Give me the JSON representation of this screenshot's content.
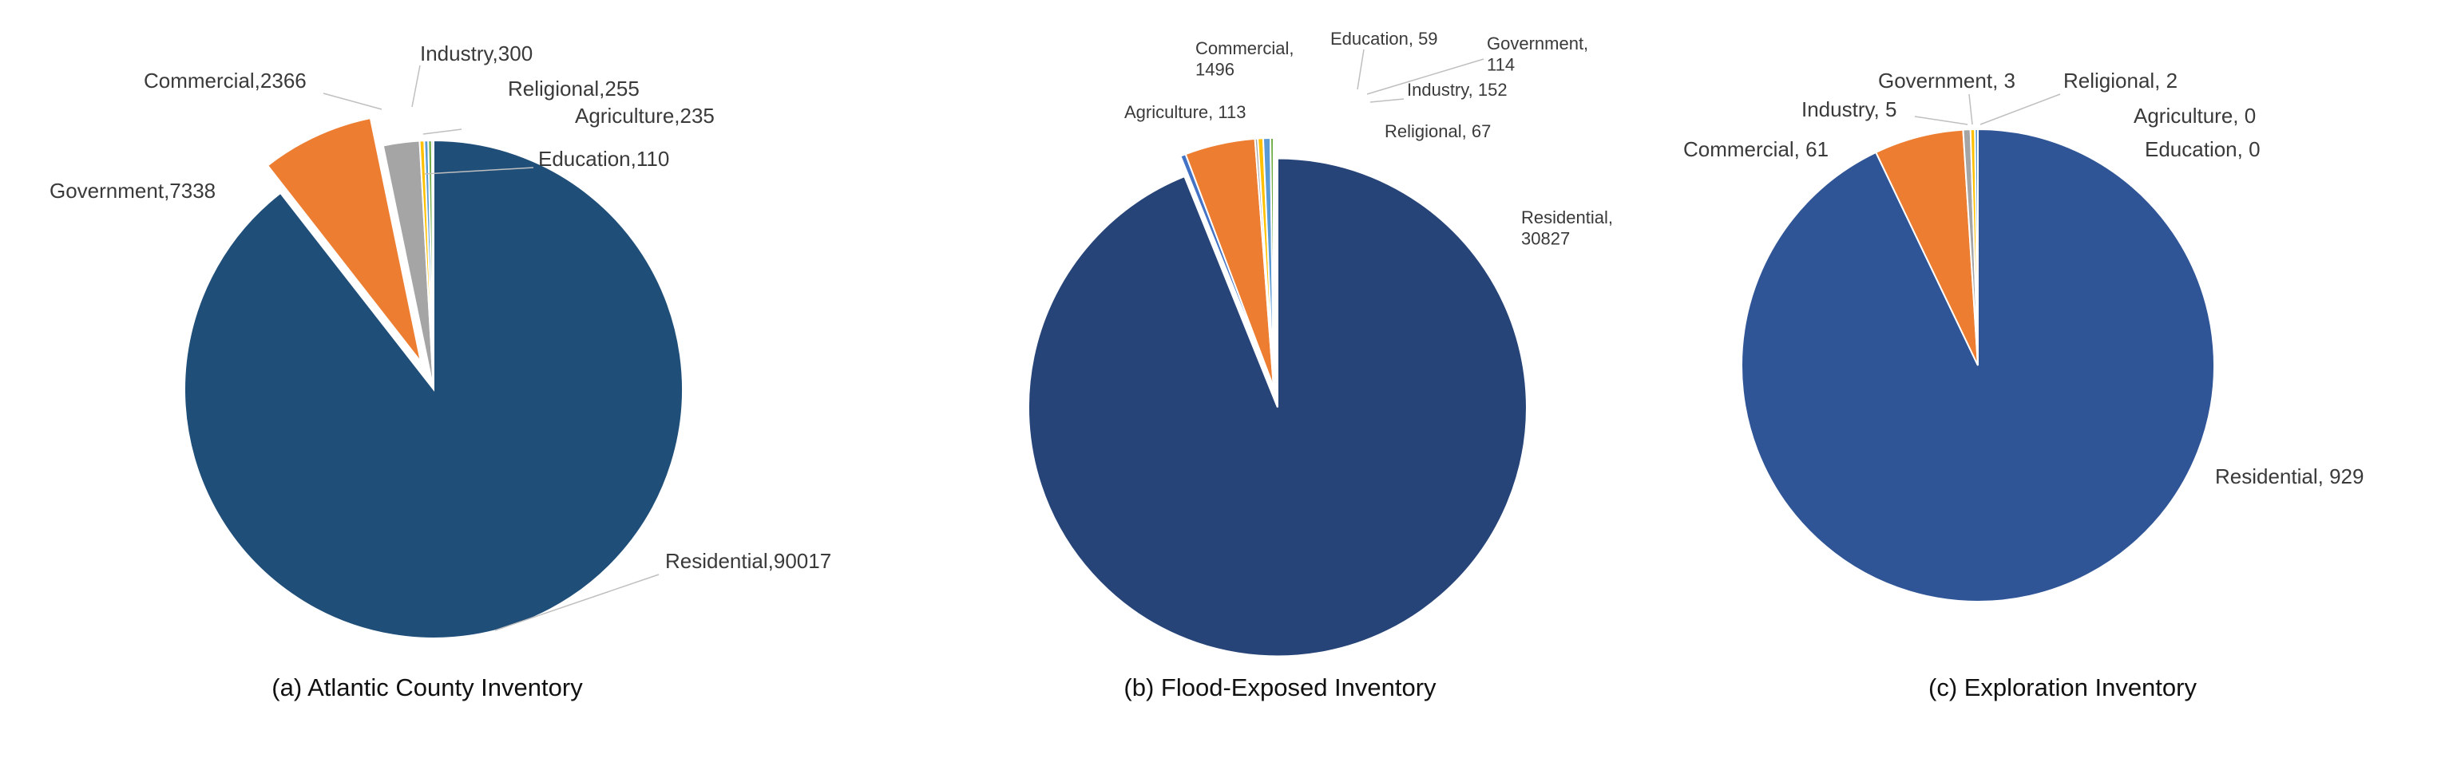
{
  "chart_data": [
    {
      "type": "pie",
      "caption": "(a) Atlantic County Inventory",
      "series": [
        {
          "name": "Residential",
          "label": "Residential,90017",
          "value": 90017,
          "color": "#1f4e79"
        },
        {
          "name": "Government",
          "label": "Government,7338",
          "value": 7338,
          "color": "#ed7d31"
        },
        {
          "name": "Commercial",
          "label": "Commercial,2366",
          "value": 2366,
          "color": "#a5a5a5"
        },
        {
          "name": "Industry",
          "label": "Industry,300",
          "value": 300,
          "color": "#ffc000"
        },
        {
          "name": "Religional",
          "label": "Religional,255",
          "value": 255,
          "color": "#5b9bd5"
        },
        {
          "name": "Agriculture",
          "label": "Agriculture,235",
          "value": 235,
          "color": "#70ad47"
        },
        {
          "name": "Education",
          "label": "Education,110",
          "value": 110,
          "color": "#264478"
        }
      ],
      "exploded": "Government"
    },
    {
      "type": "pie",
      "caption": "(b) Flood-Exposed Inventory",
      "series": [
        {
          "name": "Residential",
          "label": "Residential,\n30827",
          "value": 30827,
          "color": "#264478"
        },
        {
          "name": "Agriculture",
          "label": "Agriculture, 113",
          "value": 113,
          "color": "#4472c4"
        },
        {
          "name": "Commercial",
          "label": "Commercial,\n1496",
          "value": 1496,
          "color": "#ed7d31"
        },
        {
          "name": "Education",
          "label": "Education, 59",
          "value": 59,
          "color": "#a5a5a5"
        },
        {
          "name": "Government",
          "label": "Government,\n114",
          "value": 114,
          "color": "#ffc000"
        },
        {
          "name": "Industry",
          "label": "Industry, 152",
          "value": 152,
          "color": "#5b9bd5"
        },
        {
          "name": "Religional",
          "label": "Religional, 67",
          "value": 67,
          "color": "#70ad47"
        }
      ],
      "exploded": "Residential"
    },
    {
      "type": "pie",
      "caption": "(c) Exploration Inventory",
      "series": [
        {
          "name": "Residential",
          "label": "Residential, 929",
          "value": 929,
          "color": "#2f5597"
        },
        {
          "name": "Commercial",
          "label": "Commercial, 61",
          "value": 61,
          "color": "#ed7d31"
        },
        {
          "name": "Industry",
          "label": "Industry, 5",
          "value": 5,
          "color": "#a5a5a5"
        },
        {
          "name": "Government",
          "label": "Government, 3",
          "value": 3,
          "color": "#ffc000"
        },
        {
          "name": "Religional",
          "label": "Religional, 2",
          "value": 2,
          "color": "#5b9bd5"
        },
        {
          "name": "Agriculture",
          "label": "Agriculture, 0",
          "value": 0,
          "color": "#70ad47"
        },
        {
          "name": "Education",
          "label": "Education, 0",
          "value": 0,
          "color": "#264478"
        }
      ]
    }
  ]
}
